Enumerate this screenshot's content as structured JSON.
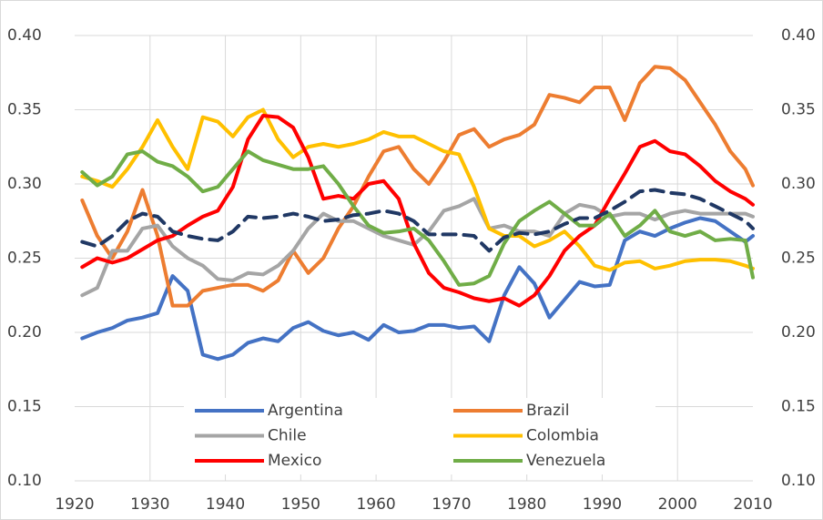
{
  "chart_data": {
    "type": "line",
    "x": [
      1921,
      1923,
      1925,
      1927,
      1929,
      1931,
      1933,
      1935,
      1937,
      1939,
      1941,
      1943,
      1945,
      1947,
      1949,
      1951,
      1953,
      1955,
      1957,
      1959,
      1961,
      1963,
      1965,
      1967,
      1969,
      1971,
      1973,
      1975,
      1977,
      1979,
      1981,
      1983,
      1985,
      1987,
      1989,
      1991,
      1993,
      1995,
      1997,
      1999,
      2001,
      2003,
      2005,
      2007,
      2009,
      2010
    ],
    "xlim": [
      1920,
      2010
    ],
    "xticks": [
      1920,
      1930,
      1940,
      1950,
      1960,
      1970,
      1980,
      1990,
      2000,
      2010
    ],
    "ylim": [
      0.1,
      0.4
    ],
    "yticks": [
      {
        "value": 0.1,
        "label": "0.10"
      },
      {
        "value": 0.15,
        "label": "0.15"
      },
      {
        "value": 0.2,
        "label": "0.20"
      },
      {
        "value": 0.25,
        "label": "0.25"
      },
      {
        "value": 0.3,
        "label": "0.30"
      },
      {
        "value": 0.35,
        "label": "0.35"
      },
      {
        "value": 0.4,
        "label": "0.40"
      }
    ],
    "y2lim": [
      0.1,
      0.4
    ],
    "y2ticks": [
      {
        "value": 0.1,
        "label": "0.10"
      },
      {
        "value": 0.15,
        "label": "0.15"
      },
      {
        "value": 0.2,
        "label": "0.20"
      },
      {
        "value": 0.25,
        "label": "0.25"
      },
      {
        "value": 0.3,
        "label": "0.30"
      },
      {
        "value": 0.35,
        "label": "0.35"
      },
      {
        "value": 0.4,
        "label": "0.40"
      }
    ],
    "grid": true,
    "legend_position": "bottom",
    "series": [
      {
        "name": "Argentina",
        "color": "#4472c4",
        "values": [
          0.196,
          0.2,
          0.203,
          0.208,
          0.21,
          0.213,
          0.238,
          0.228,
          0.185,
          0.182,
          0.185,
          0.193,
          0.196,
          0.194,
          0.203,
          0.207,
          0.201,
          0.198,
          0.2,
          0.195,
          0.205,
          0.2,
          0.201,
          0.205,
          0.205,
          0.203,
          0.204,
          0.194,
          0.225,
          0.244,
          0.233,
          0.21,
          0.222,
          0.234,
          0.231,
          0.232,
          0.262,
          0.268,
          0.265,
          0.27,
          0.274,
          0.277,
          0.275,
          0.268,
          0.261,
          0.265
        ]
      },
      {
        "name": "Brazil",
        "color": "#ed7d31",
        "values": [
          0.289,
          0.265,
          0.25,
          0.268,
          0.296,
          0.265,
          0.218,
          0.218,
          0.228,
          0.23,
          0.232,
          0.232,
          0.228,
          0.235,
          0.255,
          0.24,
          0.25,
          0.27,
          0.285,
          0.305,
          0.322,
          0.325,
          0.31,
          0.3,
          0.315,
          0.333,
          0.337,
          0.325,
          0.33,
          0.333,
          0.34,
          0.36,
          0.358,
          0.355,
          0.365,
          0.365,
          0.343,
          0.368,
          0.379,
          0.378,
          0.37,
          0.355,
          0.34,
          0.322,
          0.31,
          0.299
        ]
      },
      {
        "name": "Chile",
        "color": "#a5a5a5",
        "values": [
          0.225,
          0.23,
          0.255,
          0.255,
          0.27,
          0.272,
          0.258,
          0.25,
          0.245,
          0.236,
          0.235,
          0.24,
          0.239,
          0.245,
          0.255,
          0.27,
          0.28,
          0.275,
          0.275,
          0.27,
          0.265,
          0.262,
          0.259,
          0.268,
          0.282,
          0.285,
          0.29,
          0.27,
          0.272,
          0.268,
          0.268,
          0.265,
          0.28,
          0.286,
          0.284,
          0.278,
          0.28,
          0.28,
          0.276,
          0.28,
          0.282,
          0.28,
          0.28,
          0.28,
          0.28,
          0.278
        ]
      },
      {
        "name": "Colombia",
        "color": "#ffc000",
        "values": [
          0.305,
          0.302,
          0.298,
          0.31,
          0.325,
          0.343,
          0.325,
          0.31,
          0.345,
          0.342,
          0.332,
          0.345,
          0.35,
          0.33,
          0.318,
          0.325,
          0.327,
          0.325,
          0.327,
          0.33,
          0.335,
          0.332,
          0.332,
          0.327,
          0.322,
          0.32,
          0.298,
          0.27,
          0.265,
          0.265,
          0.258,
          0.262,
          0.268,
          0.258,
          0.245,
          0.242,
          0.247,
          0.248,
          0.243,
          0.245,
          0.248,
          0.249,
          0.249,
          0.248,
          0.245,
          0.243
        ]
      },
      {
        "name": "Mexico",
        "color": "#ff0000",
        "values": [
          0.244,
          0.25,
          0.247,
          0.25,
          0.256,
          0.262,
          0.265,
          0.272,
          0.278,
          0.282,
          0.298,
          0.33,
          0.346,
          0.345,
          0.338,
          0.318,
          0.29,
          0.292,
          0.29,
          0.3,
          0.302,
          0.29,
          0.26,
          0.24,
          0.23,
          0.227,
          0.223,
          0.221,
          0.223,
          0.218,
          0.225,
          0.238,
          0.255,
          0.265,
          0.272,
          0.29,
          0.307,
          0.325,
          0.329,
          0.322,
          0.32,
          0.312,
          0.302,
          0.295,
          0.29,
          0.286
        ]
      },
      {
        "name": "Venezuela",
        "color": "#70ad47",
        "values": [
          0.308,
          0.299,
          0.305,
          0.32,
          0.322,
          0.315,
          0.312,
          0.305,
          0.295,
          0.298,
          0.31,
          0.322,
          0.316,
          0.313,
          0.31,
          0.31,
          0.312,
          0.3,
          0.285,
          0.272,
          0.267,
          0.268,
          0.27,
          0.262,
          0.248,
          0.232,
          0.233,
          0.238,
          0.26,
          0.275,
          0.282,
          0.288,
          0.28,
          0.272,
          0.272,
          0.28,
          0.265,
          0.272,
          0.282,
          0.268,
          0.265,
          0.268,
          0.262,
          0.263,
          0.262,
          0.237
        ]
      },
      {
        "color": "#203864",
        "line_style": "dashed",
        "values": [
          0.261,
          0.258,
          0.265,
          0.275,
          0.28,
          0.278,
          0.268,
          0.265,
          0.263,
          0.262,
          0.268,
          0.278,
          0.277,
          0.278,
          0.28,
          0.278,
          0.275,
          0.276,
          0.279,
          0.28,
          0.282,
          0.28,
          0.275,
          0.266,
          0.266,
          0.266,
          0.265,
          0.255,
          0.264,
          0.267,
          0.266,
          0.268,
          0.273,
          0.277,
          0.277,
          0.282,
          0.288,
          0.295,
          0.296,
          0.294,
          0.293,
          0.29,
          0.285,
          0.28,
          0.275,
          0.27
        ]
      }
    ]
  }
}
